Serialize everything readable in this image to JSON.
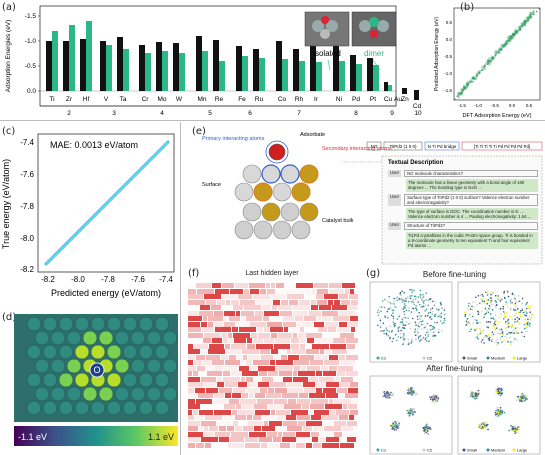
{
  "labels": {
    "a": "(a)",
    "b": "(b)",
    "c": "(c)",
    "d": "(d)",
    "e": "(e)",
    "f": "(f)",
    "g": "(g)"
  },
  "panel_a": {
    "ylabel": "Adsorption Energies (eV)",
    "yticks": [
      "-1.5",
      "-1.0",
      "-0.5",
      "0.0"
    ],
    "group_numbers": [
      "2",
      "3",
      "4",
      "5",
      "6",
      "7",
      "8",
      "9",
      "10"
    ],
    "isolated_label": "isolated",
    "dimer_label": "dimer",
    "colors": {
      "isolated": "#111111",
      "dimer": "#2bb889"
    }
  },
  "panel_b": {
    "xlabel": "DFT Adsorption Energy (eV)",
    "ylabel": "Predicted Adsorption Energy (eV)",
    "xticks": [
      "-1.5",
      "-1.0",
      "-0.5",
      "0.0",
      "0.5"
    ],
    "yticks": [
      "-1.5",
      "-1.0",
      "-0.5",
      "0.0",
      "0.5"
    ]
  },
  "panel_c": {
    "mae": "MAE: 0.0013 eV/atom",
    "xlabel": "Predicted energy (eV/atom)",
    "ylabel": "True energy (eV/atom)",
    "xticks": [
      "-8.2",
      "-8.0",
      "-7.8",
      "-7.6",
      "-7.4"
    ],
    "yticks": [
      "-7.4",
      "-7.6",
      "-7.8",
      "-8.0",
      "-8.2"
    ]
  },
  "panel_d": {
    "cbar_min": "-1.1 eV",
    "cbar_max": "1.1 eV",
    "center_atom": "O"
  },
  "panel_e": {
    "adsorbate": "Adsorbate",
    "primary": "Primary interacting atoms",
    "secondary": "Secondary interacting atoms",
    "surface": "Surface",
    "bulk": "Catalyst bulk",
    "input_tokens": [
      "NO",
      "TiIPd2 (1 0 0)",
      "N Ti Pd bridge",
      "[Ti Ti Ti Ti Ti Pd Pd Pd Pd Pd]"
    ],
    "textual_title": "Textual Description",
    "user": "User",
    "q1": "NO molecule characteristics?",
    "a1": "The molecule has a linear geometry with a bond angle of 180 degrees ... The bonding type is N≡O ...",
    "q2": "Surface type of TiIPd2 (1 0 0) surface? Valence electron number and electronegativity?",
    "a2": "The type of surface is DOC. The coordination number is 8. ... Valence electron number is 4 ... Pauling electronegativity: 1.54 ...",
    "q3": "Structure of TiIPd2?",
    "a3": "Ti1Pd crystallizes in the cubic Pm3m space group. Ti is bonded in a 8-coordinate geometry to ten equivalent Ti and four equivalent Pd atoms ..."
  },
  "panel_f": {
    "title": "Last hidden layer"
  },
  "panel_g": {
    "before": "Before fine-tuning",
    "after": "After fine-tuning",
    "legend_left": [
      "C1",
      "C2"
    ],
    "legend_right": [
      "Small",
      "Medium",
      "Large"
    ]
  }
}
